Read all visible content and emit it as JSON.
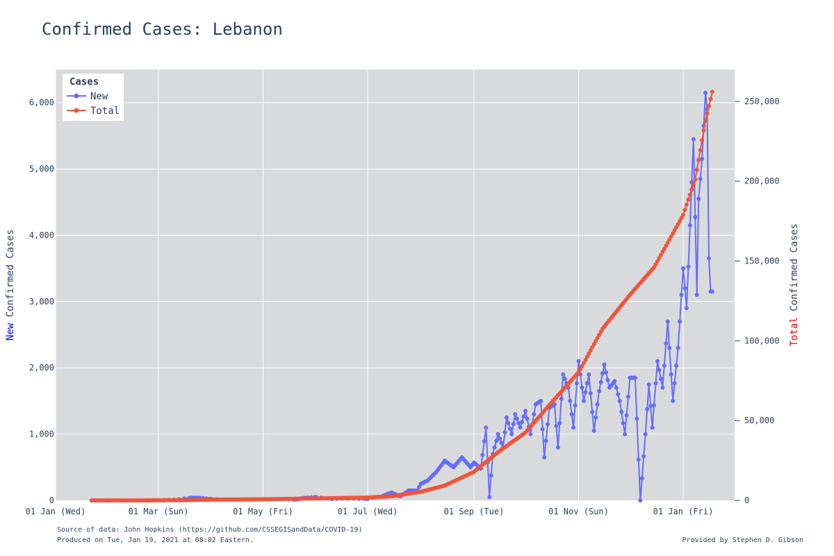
{
  "chart_data": {
    "type": "line",
    "title": "Confirmed Cases: Lebanon",
    "x_tick_labels": [
      "01 Jan (Wed)",
      "01 Mar (Sun)",
      "01 May (Fri)",
      "01 Jul (Wed)",
      "01 Sep (Tue)",
      "01 Nov (Sun)",
      "01 Jan (Fri)"
    ],
    "x_tick_dates": [
      "2020-01-01",
      "2020-03-01",
      "2020-05-01",
      "2020-07-01",
      "2020-09-01",
      "2020-11-01",
      "2021-01-01"
    ],
    "xlim": [
      "2020-01-01",
      "2021-01-31"
    ],
    "y_left": {
      "label_colored": "New",
      "label_rest": " Confirmed Cases",
      "color": "#0000ff",
      "ylim": [
        0,
        6500
      ],
      "ticks": [
        0,
        1000,
        2000,
        3000,
        4000,
        5000,
        6000
      ],
      "tick_labels": [
        "0",
        "1,000",
        "2,000",
        "3,000",
        "4,000",
        "5,000",
        "6,000"
      ]
    },
    "y_right": {
      "label_colored": "Total",
      "label_rest": " Confirmed Cases",
      "color": "#ff0000",
      "ylim": [
        0,
        270000
      ],
      "ticks": [
        0,
        50000,
        100000,
        150000,
        200000,
        250000
      ],
      "tick_labels": [
        "0",
        "50,000",
        "100,000",
        "150,000",
        "200,000",
        "250,000"
      ]
    },
    "legend": {
      "title": "Cases",
      "placement": "top-left",
      "entries": [
        {
          "name": "New",
          "color": "#636efa"
        },
        {
          "name": "Total",
          "color": "#ef553b"
        }
      ]
    },
    "grid": true,
    "plot_background": "#d9dadc",
    "series": [
      {
        "name": "New",
        "axis": "left",
        "color": "#636efa",
        "x": [
          "2020-01-22",
          "2020-02-21",
          "2020-03-01",
          "2020-03-10",
          "2020-03-20",
          "2020-03-25",
          "2020-04-01",
          "2020-04-10",
          "2020-04-20",
          "2020-05-01",
          "2020-05-10",
          "2020-05-20",
          "2020-05-25",
          "2020-06-01",
          "2020-06-10",
          "2020-06-20",
          "2020-07-01",
          "2020-07-10",
          "2020-07-15",
          "2020-07-20",
          "2020-07-25",
          "2020-07-30",
          "2020-08-01",
          "2020-08-05",
          "2020-08-10",
          "2020-08-15",
          "2020-08-20",
          "2020-08-25",
          "2020-08-30",
          "2020-09-01",
          "2020-09-05",
          "2020-09-08",
          "2020-09-10",
          "2020-09-12",
          "2020-09-15",
          "2020-09-18",
          "2020-09-20",
          "2020-09-23",
          "2020-09-25",
          "2020-09-28",
          "2020-10-01",
          "2020-10-04",
          "2020-10-07",
          "2020-10-10",
          "2020-10-12",
          "2020-10-15",
          "2020-10-18",
          "2020-10-20",
          "2020-10-23",
          "2020-10-26",
          "2020-10-29",
          "2020-11-01",
          "2020-11-04",
          "2020-11-07",
          "2020-11-10",
          "2020-11-13",
          "2020-11-16",
          "2020-11-19",
          "2020-11-22",
          "2020-11-25",
          "2020-11-28",
          "2020-12-01",
          "2020-12-04",
          "2020-12-07",
          "2020-12-10",
          "2020-12-12",
          "2020-12-14",
          "2020-12-17",
          "2020-12-20",
          "2020-12-23",
          "2020-12-26",
          "2020-12-29",
          "2021-01-01",
          "2021-01-03",
          "2021-01-05",
          "2021-01-07",
          "2021-01-09",
          "2021-01-10",
          "2021-01-12",
          "2021-01-14",
          "2021-01-15",
          "2021-01-16",
          "2021-01-17",
          "2021-01-18"
        ],
        "values": [
          0,
          0,
          5,
          10,
          40,
          40,
          20,
          10,
          10,
          15,
          20,
          10,
          40,
          50,
          20,
          30,
          20,
          70,
          120,
          60,
          150,
          150,
          250,
          300,
          430,
          600,
          500,
          650,
          500,
          570,
          480,
          1100,
          50,
          700,
          1000,
          800,
          1250,
          1000,
          1300,
          1100,
          1350,
          1000,
          1450,
          1500,
          650,
          1400,
          1450,
          800,
          1900,
          1700,
          1100,
          2100,
          1500,
          1900,
          1050,
          1650,
          2050,
          1700,
          1800,
          1500,
          1000,
          1850,
          1850,
          0,
          1000,
          1750,
          1100,
          2100,
          1700,
          2700,
          1500,
          2300,
          3500,
          2900,
          4150,
          5450,
          3100,
          4550,
          5150,
          6150,
          5900,
          3650,
          3150,
          3150
        ],
        "marker_sample_note": ""
      },
      {
        "name": "Total",
        "axis": "right",
        "color": "#ef553b",
        "x": [
          "2020-01-22",
          "2020-02-21",
          "2020-03-15",
          "2020-04-01",
          "2020-05-01",
          "2020-06-01",
          "2020-07-01",
          "2020-07-15",
          "2020-08-01",
          "2020-08-15",
          "2020-09-01",
          "2020-09-15",
          "2020-10-01",
          "2020-10-15",
          "2020-11-01",
          "2020-11-15",
          "2020-12-01",
          "2020-12-15",
          "2021-01-01",
          "2021-01-08",
          "2021-01-14",
          "2021-01-18"
        ],
        "values": [
          0,
          1,
          110,
          480,
          730,
          1240,
          1800,
          2600,
          5400,
          9300,
          17900,
          30200,
          42500,
          59800,
          80300,
          107600,
          128900,
          146000,
          178900,
          201000,
          238000,
          256000
        ]
      }
    ]
  },
  "footer": {
    "source": "Source of data: John Hopkins (https://github.com/CSSEGISandData/COVID-19)",
    "produced": "Produced on Tue, Jan 19, 2021 at 08:02 Eastern.",
    "provided_by": "Provided by Stephen D. Gibson"
  }
}
